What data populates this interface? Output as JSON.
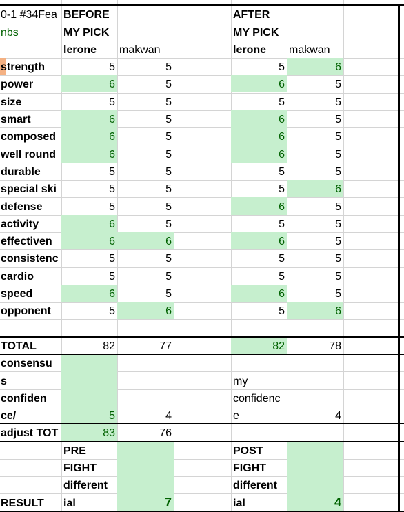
{
  "headers": {
    "a1": "0-1 #34Fea",
    "a2": "nbs",
    "before": "BEFORE",
    "after": "AFTER",
    "my_pick": "MY PICK",
    "fighter1": "lerone",
    "fighter2": "makwan"
  },
  "rows": [
    {
      "label": "strength",
      "b1": "5",
      "b2": "5",
      "a1": "5",
      "a2": "6"
    },
    {
      "label": "power",
      "b1": "6",
      "b2": "5",
      "a1": "6",
      "a2": "5"
    },
    {
      "label": "size",
      "b1": "5",
      "b2": "5",
      "a1": "5",
      "a2": "5"
    },
    {
      "label": "smart",
      "b1": "6",
      "b2": "5",
      "a1": "6",
      "a2": "5"
    },
    {
      "label": "composed",
      "b1": "6",
      "b2": "5",
      "a1": "6",
      "a2": "5"
    },
    {
      "label": "well round",
      "b1": "6",
      "b2": "5",
      "a1": "6",
      "a2": "5"
    },
    {
      "label": "durable",
      "b1": "5",
      "b2": "5",
      "a1": "5",
      "a2": "5"
    },
    {
      "label": "special ski",
      "b1": "5",
      "b2": "5",
      "a1": "5",
      "a2": "6"
    },
    {
      "label": "defense",
      "b1": "5",
      "b2": "5",
      "a1": "6",
      "a2": "5"
    },
    {
      "label": "activity",
      "b1": "6",
      "b2": "5",
      "a1": "5",
      "a2": "5"
    },
    {
      "label": "effectiven",
      "b1": "6",
      "b2": "6",
      "a1": "6",
      "a2": "5"
    },
    {
      "label": "consistenc",
      "b1": "5",
      "b2": "5",
      "a1": "5",
      "a2": "5"
    },
    {
      "label": "cardio",
      "b1": "5",
      "b2": "5",
      "a1": "5",
      "a2": "5"
    },
    {
      "label": "speed",
      "b1": "6",
      "b2": "5",
      "a1": "6",
      "a2": "5"
    },
    {
      "label": "opponent",
      "b1": "5",
      "b2": "6",
      "a1": "5",
      "a2": "6"
    }
  ],
  "highlights": {
    "b1": [
      false,
      true,
      false,
      true,
      true,
      true,
      false,
      false,
      false,
      true,
      true,
      false,
      false,
      true,
      false
    ],
    "b2": [
      false,
      false,
      false,
      false,
      false,
      false,
      false,
      false,
      false,
      false,
      true,
      false,
      false,
      false,
      true
    ],
    "a1": [
      false,
      true,
      false,
      true,
      true,
      true,
      false,
      false,
      true,
      false,
      true,
      false,
      false,
      true,
      false
    ],
    "a2": [
      true,
      false,
      false,
      false,
      false,
      false,
      false,
      true,
      false,
      false,
      false,
      false,
      false,
      false,
      true
    ]
  },
  "total": {
    "label": "TOTAL",
    "b1": "82",
    "b2": "77",
    "a1": "82",
    "a2": "78"
  },
  "confidence": {
    "label_lines": [
      "consensu",
      "s",
      "confiden",
      "ce/"
    ],
    "b1": "5",
    "b2": "4",
    "after_label_lines": [
      "my",
      "confidenc",
      "e"
    ],
    "a2": "4"
  },
  "adjust": {
    "label": "adjust TOT",
    "b1": "83",
    "b2": "76"
  },
  "result": {
    "label": "RESULT",
    "pre_lines": [
      "PRE",
      "FIGHT",
      "different",
      "ial"
    ],
    "pre_value": "7",
    "post_lines": [
      "POST",
      "FIGHT",
      "different",
      "ial"
    ],
    "post_value": "4"
  },
  "colors": {
    "highlight": "#c6efce",
    "highlight_text": "#006100",
    "grid": "#d4d4d4"
  }
}
